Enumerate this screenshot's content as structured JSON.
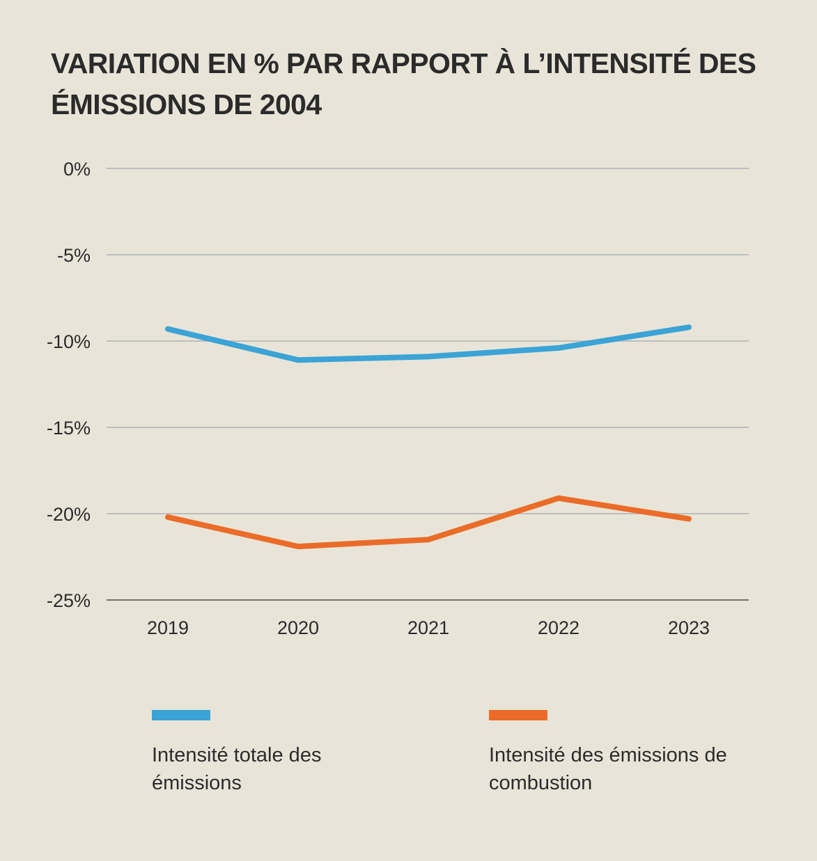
{
  "chart_data": {
    "type": "line",
    "title": "VARIATION EN % PAR RAPPORT À L’INTENSITÉ DES ÉMISSIONS DE 2004",
    "xlabel": "",
    "ylabel": "",
    "categories": [
      "2019",
      "2020",
      "2021",
      "2022",
      "2023"
    ],
    "yticks": [
      0,
      -5,
      -10,
      -15,
      -20,
      -25
    ],
    "ytick_labels": [
      "0%",
      "-5%",
      "-10%",
      "-15%",
      "-20%",
      "-25%"
    ],
    "ylim": [
      -25,
      0
    ],
    "grid": true,
    "legend_position": "bottom",
    "series": [
      {
        "name": "Intensité totale des émissions",
        "color": "#3ba3d6",
        "values": [
          -9.3,
          -11.1,
          -10.9,
          -10.4,
          -9.2
        ]
      },
      {
        "name": "Intensité des émissions de combustion",
        "color": "#ea6c28",
        "values": [
          -20.2,
          -21.9,
          -21.5,
          -19.1,
          -20.3
        ]
      }
    ],
    "colors": {
      "background": "#e8e5d8",
      "grid": "#bdbdbd",
      "axis": "#6f6f6f",
      "text": "#2b2b2b"
    }
  }
}
